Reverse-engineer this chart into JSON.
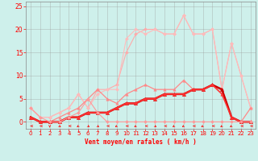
{
  "xlabel": "Vent moyen/en rafales ( km/h )",
  "xlim": [
    -0.5,
    23.5
  ],
  "ylim": [
    -1.5,
    26
  ],
  "yticks": [
    0,
    5,
    10,
    15,
    20,
    25
  ],
  "xticks": [
    0,
    1,
    2,
    3,
    4,
    5,
    6,
    7,
    8,
    9,
    10,
    11,
    12,
    13,
    14,
    15,
    16,
    17,
    18,
    19,
    20,
    21,
    22,
    23
  ],
  "background_color": "#cef0eb",
  "grid_color": "#999999",
  "series": [
    {
      "x": [
        0,
        1,
        2,
        3,
        4,
        5,
        6,
        7,
        8,
        9,
        10,
        11,
        12,
        13,
        14,
        15,
        16,
        17,
        18,
        19,
        20,
        21,
        22,
        23
      ],
      "y": [
        3,
        1,
        1,
        2,
        3,
        6,
        3,
        7,
        7,
        8,
        15,
        19,
        20,
        20,
        19,
        19,
        23,
        19,
        19,
        20,
        7,
        17,
        10,
        3
      ],
      "color": "#ffaaaa",
      "linewidth": 0.8,
      "marker": "D",
      "markersize": 2.0,
      "linestyle": "-"
    },
    {
      "x": [
        0,
        1,
        2,
        3,
        4,
        5,
        6,
        7,
        8,
        9,
        10,
        11,
        12,
        13,
        14,
        15,
        16,
        17,
        18,
        19,
        20,
        21,
        22,
        23
      ],
      "y": [
        3,
        1,
        1,
        2,
        3,
        6,
        3,
        6,
        7,
        7,
        18,
        20,
        19,
        20,
        19,
        19,
        23,
        19,
        19,
        20,
        7,
        17,
        10,
        3
      ],
      "color": "#ffbbbb",
      "linewidth": 0.8,
      "marker": "D",
      "markersize": 2.0,
      "linestyle": "-"
    },
    {
      "x": [
        0,
        1,
        2,
        3,
        4,
        5,
        6,
        7,
        8,
        9,
        10,
        11,
        12,
        13,
        14,
        15,
        16,
        17,
        18,
        19,
        20,
        21,
        22,
        23
      ],
      "y": [
        1,
        0,
        0,
        1,
        2,
        3,
        5,
        7,
        5,
        4,
        6,
        7,
        8,
        7,
        7,
        7,
        9,
        7,
        7,
        8,
        7,
        1,
        0,
        3
      ],
      "color": "#ff8888",
      "linewidth": 0.9,
      "marker": "^",
      "markersize": 2.5,
      "linestyle": "-"
    },
    {
      "x": [
        0,
        1,
        2,
        3,
        4,
        5,
        6,
        7,
        8,
        9,
        10,
        11,
        12,
        13,
        14,
        15,
        16,
        17,
        18,
        19,
        20,
        21,
        22,
        23
      ],
      "y": [
        1,
        0,
        0,
        0,
        1,
        1,
        2,
        2,
        2,
        3,
        4,
        4,
        5,
        5,
        6,
        6,
        6,
        7,
        7,
        8,
        7,
        1,
        0,
        0
      ],
      "color": "#cc0000",
      "linewidth": 1.8,
      "marker": "^",
      "markersize": 3.0,
      "linestyle": "-"
    },
    {
      "x": [
        0,
        1,
        2,
        3,
        4,
        5,
        6,
        7,
        8,
        9,
        10,
        11,
        12,
        13,
        14,
        15,
        16,
        17,
        18,
        19,
        20,
        21,
        22,
        23
      ],
      "y": [
        1,
        0,
        0,
        0,
        1,
        1,
        2,
        2,
        2,
        3,
        4,
        4,
        5,
        5,
        6,
        6,
        6,
        7,
        7,
        8,
        6,
        1,
        0,
        0
      ],
      "color": "#ff3333",
      "linewidth": 1.2,
      "marker": "^",
      "markersize": 2.5,
      "linestyle": "-"
    },
    {
      "x": [
        0,
        1,
        2,
        3,
        4,
        5,
        6,
        7,
        8,
        9,
        10,
        11,
        12,
        13,
        14,
        15,
        16,
        17,
        18,
        19,
        20,
        21,
        22,
        23
      ],
      "y": [
        3,
        1,
        0,
        0,
        1,
        2,
        5,
        2,
        0,
        0,
        0,
        0,
        0,
        0,
        0,
        0,
        0,
        0,
        0,
        0,
        0,
        0,
        0,
        0
      ],
      "color": "#ff9999",
      "linewidth": 0.8,
      "marker": "D",
      "markersize": 2.0,
      "linestyle": "-"
    }
  ],
  "wind_arrows": {
    "x": [
      0,
      1,
      2,
      3,
      4,
      5,
      6,
      7,
      8,
      9,
      10,
      11,
      12,
      13,
      14,
      15,
      16,
      17,
      18,
      19,
      20,
      21,
      22,
      23
    ],
    "angles": [
      270,
      270,
      0,
      45,
      270,
      315,
      45,
      45,
      270,
      315,
      270,
      315,
      270,
      45,
      270,
      315,
      315,
      270,
      315,
      270,
      315,
      315,
      270,
      270
    ]
  }
}
